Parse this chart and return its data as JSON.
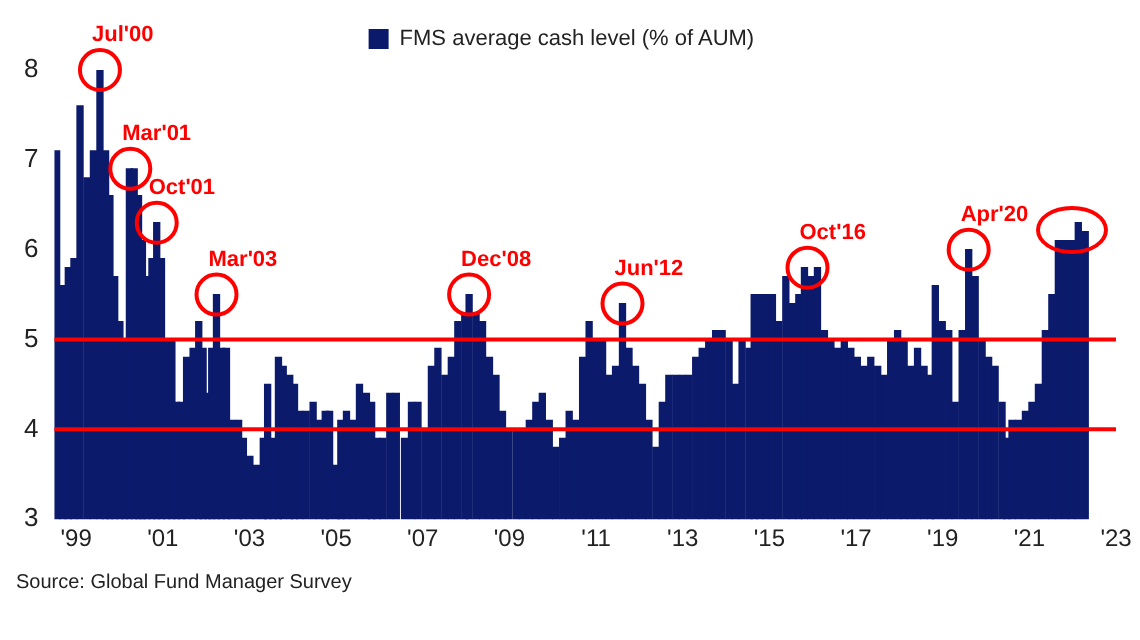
{
  "chart_data": {
    "type": "bar",
    "x": [
      1998.55,
      1998.69,
      1998.82,
      1998.95,
      1999.09,
      1999.25,
      1999.4,
      1999.55,
      1999.68,
      1999.78,
      1999.89,
      2000.01,
      2000.12,
      2000.23,
      2000.34,
      2000.44,
      2000.53,
      2000.63,
      2000.75,
      2000.86,
      2000.97,
      2001.09,
      2001.21,
      2001.32,
      2001.43,
      2001.55,
      2001.7,
      2001.83,
      2001.93,
      2002.04,
      2002.13,
      2002.24,
      2002.35,
      2002.47,
      2002.59,
      2002.75,
      2002.86,
      2003.01,
      2003.16,
      2003.32,
      2003.42,
      2003.55,
      2003.67,
      2003.78,
      2003.93,
      2004.04,
      2004.16,
      2004.31,
      2004.47,
      2004.62,
      2004.75,
      2004.85,
      2005.01,
      2005.11,
      2005.24,
      2005.39,
      2005.54,
      2005.7,
      2005.82,
      2005.94,
      2006.08,
      2006.24,
      2006.39,
      2006.58,
      2006.74,
      2006.89,
      2007.05,
      2007.2,
      2007.35,
      2007.51,
      2007.66,
      2007.81,
      2007.97,
      2008.07,
      2008.23,
      2008.38,
      2008.54,
      2008.69,
      2008.84,
      2008.98,
      2009.15,
      2009.3,
      2009.46,
      2009.61,
      2009.76,
      2009.92,
      2010.07,
      2010.23,
      2010.38,
      2010.53,
      2010.69,
      2010.84,
      2010.99,
      2011.15,
      2011.3,
      2011.45,
      2011.61,
      2011.76,
      2011.91,
      2012.07,
      2012.22,
      2012.38,
      2012.53,
      2012.68,
      2012.84,
      2012.99,
      2013.14,
      2013.3,
      2013.45,
      2013.6,
      2013.76,
      2013.91,
      2014.07,
      2014.22,
      2014.37,
      2014.53,
      2014.65,
      2014.78,
      2014.92,
      2015.07,
      2015.22,
      2015.38,
      2015.53,
      2015.68,
      2015.81,
      2015.96,
      2016.11,
      2016.27,
      2016.42,
      2016.57,
      2016.73,
      2016.88,
      2017.03,
      2017.19,
      2017.34,
      2017.5,
      2017.65,
      2017.8,
      2017.96,
      2018.11,
      2018.26,
      2018.42,
      2018.57,
      2018.72,
      2018.83,
      2018.99,
      2019.14,
      2019.29,
      2019.45,
      2019.6,
      2019.75,
      2019.91,
      2020.06,
      2020.21,
      2020.37,
      2020.48,
      2020.6,
      2020.75,
      2020.91,
      2021.06,
      2021.21,
      2021.37,
      2021.52,
      2021.67,
      2021.83,
      2021.98,
      2022.13,
      2022.29
    ],
    "series": [
      {
        "name": "FMS average cash level (% of AUM)",
        "color": "#0b1a6b",
        "values": [
          7.1,
          5.6,
          5.8,
          5.9,
          7.6,
          6.8,
          7.1,
          8.0,
          7.1,
          6.6,
          5.7,
          5.2,
          5.0,
          6.9,
          6.9,
          6.6,
          6.1,
          5.7,
          5.9,
          6.3,
          5.9,
          5.0,
          5.0,
          4.3,
          4.3,
          4.8,
          4.9,
          5.2,
          4.9,
          4.4,
          4.9,
          5.5,
          4.9,
          4.9,
          4.1,
          4.1,
          3.9,
          3.7,
          3.6,
          3.9,
          4.5,
          3.9,
          4.8,
          4.7,
          4.6,
          4.5,
          4.2,
          4.2,
          4.3,
          4.1,
          4.2,
          4.2,
          3.6,
          4.1,
          4.2,
          4.1,
          4.5,
          4.4,
          4.3,
          3.9,
          3.9,
          4.4,
          4.4,
          3.9,
          4.3,
          4.3,
          4.0,
          4.7,
          4.9,
          4.6,
          4.8,
          5.2,
          5.3,
          5.5,
          5.3,
          5.2,
          4.8,
          4.6,
          4.2,
          4.0,
          4.0,
          4.0,
          4.1,
          4.3,
          4.4,
          4.1,
          3.8,
          3.9,
          4.2,
          4.1,
          4.8,
          5.2,
          5.0,
          5.0,
          4.6,
          4.7,
          5.4,
          4.9,
          4.7,
          4.5,
          4.1,
          3.8,
          4.3,
          4.6,
          4.6,
          4.6,
          4.6,
          4.8,
          4.9,
          5.0,
          5.1,
          5.1,
          5.0,
          4.5,
          5.0,
          4.9,
          5.5,
          5.5,
          5.5,
          5.5,
          5.2,
          5.7,
          5.4,
          5.5,
          5.8,
          5.7,
          5.8,
          5.1,
          5.0,
          4.9,
          5.0,
          4.9,
          4.8,
          4.7,
          4.8,
          4.7,
          4.6,
          5.0,
          5.1,
          5.0,
          4.7,
          4.9,
          4.7,
          4.6,
          5.6,
          5.2,
          5.1,
          4.3,
          5.1,
          6.0,
          5.7,
          5.0,
          4.8,
          4.7,
          4.3,
          3.9,
          4.1,
          4.1,
          4.2,
          4.3,
          4.5,
          5.1,
          5.5,
          6.1,
          6.1,
          6.1,
          6.3,
          6.2
        ]
      }
    ],
    "xlim": [
      1998.5,
      2023
    ],
    "xticks": [
      {
        "value": 1999,
        "label": "'99"
      },
      {
        "value": 2001,
        "label": "'01"
      },
      {
        "value": 2003,
        "label": "'03"
      },
      {
        "value": 2005,
        "label": "'05"
      },
      {
        "value": 2007,
        "label": "'07"
      },
      {
        "value": 2009,
        "label": "'09"
      },
      {
        "value": 2011,
        "label": "'11"
      },
      {
        "value": 2013,
        "label": "'13"
      },
      {
        "value": 2015,
        "label": "'15"
      },
      {
        "value": 2017,
        "label": "'17"
      },
      {
        "value": 2019,
        "label": "'19"
      },
      {
        "value": 2021,
        "label": "'21"
      },
      {
        "value": 2023,
        "label": "'23"
      }
    ],
    "ylim": [
      3,
      8
    ],
    "yticks": [
      3,
      4,
      5,
      6,
      7,
      8
    ],
    "ref_lines": [
      {
        "axis": "y",
        "value": 5,
        "color": "#ff0000"
      },
      {
        "axis": "y",
        "value": 4,
        "color": "#ff0000"
      }
    ],
    "annotations": [
      {
        "text": "Jul'00",
        "x": 1999.55,
        "y": 8.0
      },
      {
        "text": "Mar'01",
        "x": 2000.25,
        "y": 6.9
      },
      {
        "text": "Oct'01",
        "x": 2000.86,
        "y": 6.3
      },
      {
        "text": "Mar'03",
        "x": 2002.24,
        "y": 5.5
      },
      {
        "text": "Dec'08",
        "x": 2008.07,
        "y": 5.5
      },
      {
        "text": "Jun'12",
        "x": 2011.61,
        "y": 5.4
      },
      {
        "text": "Oct'16",
        "x": 2015.88,
        "y": 5.8
      },
      {
        "text": "Apr'20",
        "x": 2019.6,
        "y": 6.0
      },
      "Source: Global Fund Manager Survey"
    ],
    "legend": "top",
    "grid": false
  }
}
